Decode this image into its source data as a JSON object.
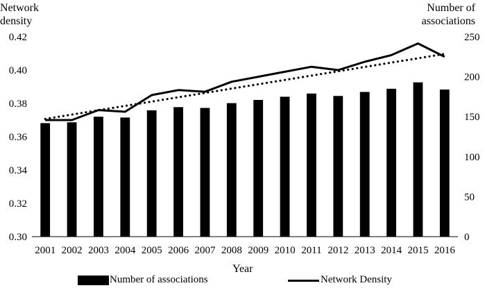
{
  "chart_data": {
    "type": "bar",
    "title": "",
    "xlabel": "Year",
    "ylabel_left": "Network density",
    "ylabel_left_lines": [
      "Network",
      "density"
    ],
    "ylabel_right": "Number of associations",
    "ylabel_right_lines": [
      "Number of",
      "associations"
    ],
    "categories": [
      "2001",
      "2002",
      "2003",
      "2004",
      "2005",
      "2006",
      "2007",
      "2008",
      "2009",
      "2010",
      "2011",
      "2012",
      "2013",
      "2014",
      "2015",
      "2016"
    ],
    "ylim_left": [
      0.3,
      0.42
    ],
    "yticks_left": [
      "0.30",
      "0.32",
      "0.34",
      "0.36",
      "0.38",
      "0.40",
      "0.42"
    ],
    "ylim_right": [
      0,
      250
    ],
    "yticks_right": [
      "0",
      "50",
      "100",
      "150",
      "200",
      "250"
    ],
    "series": [
      {
        "name": "Number of associations",
        "type": "bar",
        "axis": "right",
        "color": "#000000",
        "values": [
          142,
          143,
          150,
          149,
          158,
          162,
          161,
          167,
          171,
          175,
          179,
          176,
          181,
          185,
          193,
          184
        ]
      },
      {
        "name": "Network Density",
        "type": "line",
        "axis": "left",
        "color": "#000000",
        "values": [
          0.37,
          0.37,
          0.376,
          0.375,
          0.385,
          0.388,
          0.387,
          0.393,
          0.396,
          0.399,
          0.402,
          0.4,
          0.405,
          0.409,
          0.416,
          0.408
        ]
      },
      {
        "type": "dotted-trend",
        "axis": "left",
        "color": "#000000",
        "values": [
          0.3707,
          0.3733,
          0.3759,
          0.3785,
          0.3811,
          0.3837,
          0.3863,
          0.3889,
          0.3915,
          0.3941,
          0.3967,
          0.3993,
          0.4019,
          0.4045,
          0.4071,
          0.4097
        ]
      }
    ],
    "legend_position": "bottom",
    "grid": false
  }
}
